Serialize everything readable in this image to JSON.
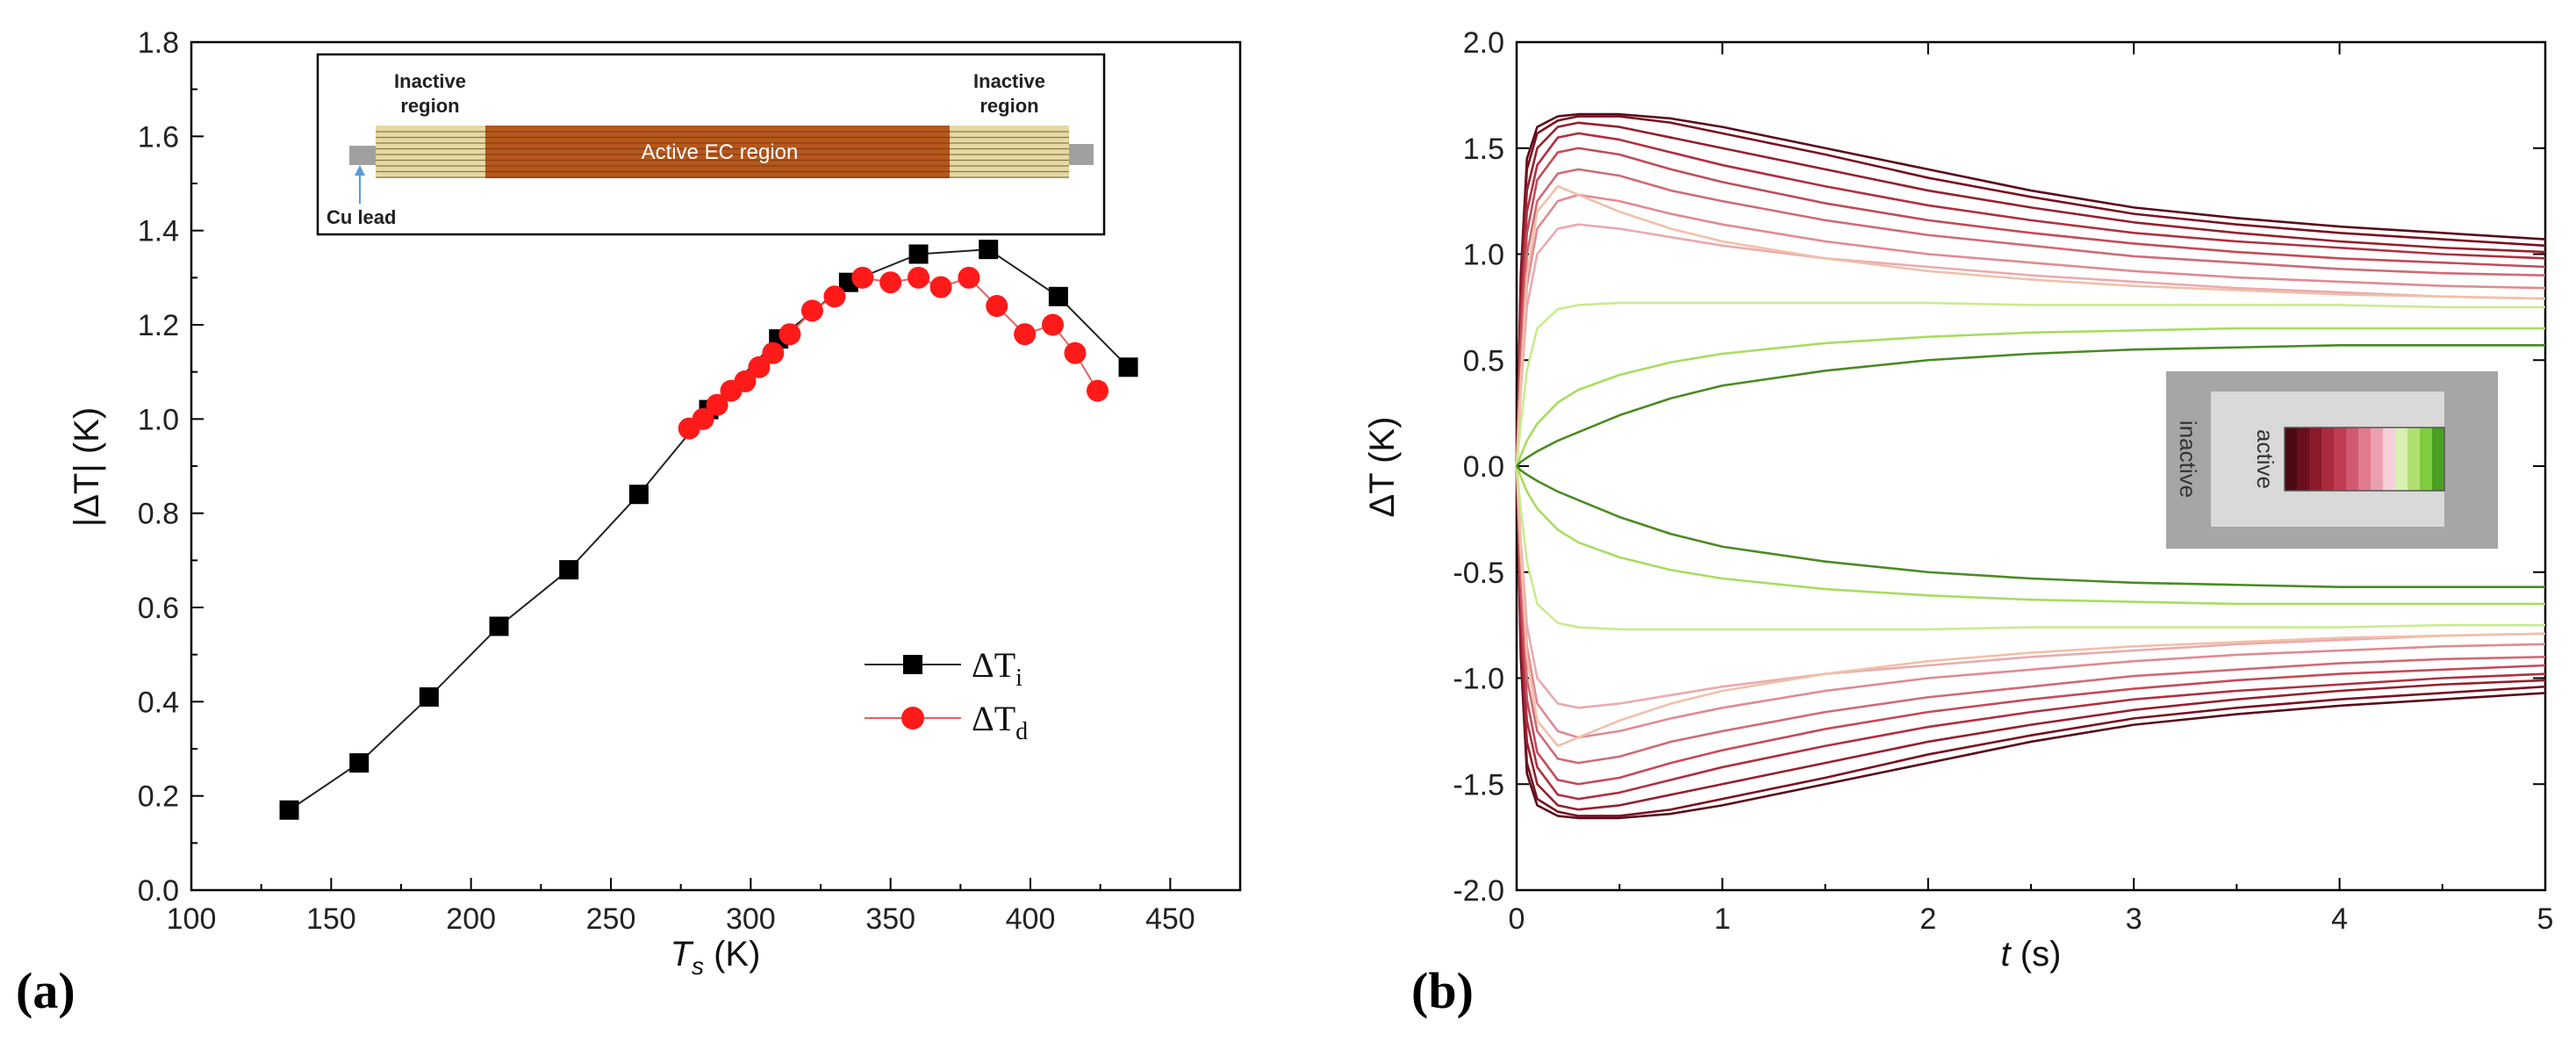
{
  "panels": {
    "a_label": "(a)",
    "b_label": "(b)"
  },
  "chart_data": [
    {
      "type": "scatter",
      "id": "a",
      "title": "",
      "xlabel_main": "T",
      "xlabel_sub": "s",
      "xlabel_unit": " (K)",
      "ylabel": "|ΔT| (K)",
      "xlim": [
        100,
        475
      ],
      "ylim": [
        0.0,
        1.8
      ],
      "xticks": [
        100,
        150,
        200,
        250,
        300,
        350,
        400,
        450
      ],
      "yticks": [
        0.0,
        0.2,
        0.4,
        0.6,
        0.8,
        1.0,
        1.2,
        1.4,
        1.6,
        1.8
      ],
      "series": [
        {
          "name": "ΔT_i",
          "legend_main": "ΔT",
          "legend_sub": "i",
          "marker": "square",
          "color": "#000000",
          "line_color": "#222222",
          "x": [
            135,
            160,
            185,
            210,
            235,
            260,
            285,
            310,
            335,
            360,
            385,
            410,
            435
          ],
          "y": [
            0.17,
            0.27,
            0.41,
            0.56,
            0.68,
            0.84,
            1.02,
            1.17,
            1.29,
            1.35,
            1.36,
            1.26,
            1.11
          ]
        },
        {
          "name": "ΔT_d",
          "legend_main": "ΔT",
          "legend_sub": "d",
          "marker": "circle",
          "color": "#ff1a1a",
          "line_color": "#e86060",
          "x": [
            278,
            283,
            288,
            293,
            298,
            303,
            308,
            314,
            322,
            330,
            340,
            350,
            360,
            368,
            378,
            388,
            398,
            408,
            416,
            424
          ],
          "y": [
            0.98,
            1.0,
            1.03,
            1.06,
            1.08,
            1.11,
            1.14,
            1.18,
            1.23,
            1.26,
            1.3,
            1.29,
            1.3,
            1.28,
            1.3,
            1.24,
            1.18,
            1.2,
            1.14,
            1.06
          ]
        }
      ],
      "legend_position": "center-right",
      "inset": {
        "left_label_1": "Inactive",
        "left_label_2": "region",
        "right_label_1": "Inactive",
        "right_label_2": "region",
        "center_label": "Active EC region",
        "lead_label": "Cu lead"
      }
    },
    {
      "type": "line",
      "id": "b",
      "title": "",
      "xlabel_main": "t",
      "xlabel_unit": " (s)",
      "ylabel": "ΔT (K)",
      "xlim": [
        0,
        5
      ],
      "ylim": [
        -2.0,
        2.0
      ],
      "xticks": [
        0,
        1,
        2,
        3,
        4,
        5
      ],
      "yticks": [
        2.0,
        1.5,
        1.0,
        0.5,
        0.0,
        -0.5,
        -1.0,
        -1.5,
        -2.0
      ],
      "time_points": [
        0.0,
        0.02,
        0.05,
        0.1,
        0.2,
        0.3,
        0.5,
        0.75,
        1.0,
        1.5,
        2.0,
        2.5,
        3.0,
        3.5,
        4.0,
        4.5,
        5.0
      ],
      "series": [
        {
          "name": "trace 1",
          "color": "#5a0a1a",
          "values": [
            0.0,
            0.9,
            1.45,
            1.6,
            1.65,
            1.66,
            1.66,
            1.64,
            1.6,
            1.5,
            1.4,
            1.3,
            1.22,
            1.17,
            1.13,
            1.1,
            1.07
          ]
        },
        {
          "name": "trace 2",
          "color": "#7a1020",
          "values": [
            0.0,
            0.85,
            1.4,
            1.57,
            1.63,
            1.65,
            1.65,
            1.62,
            1.57,
            1.47,
            1.36,
            1.27,
            1.19,
            1.14,
            1.1,
            1.07,
            1.04
          ]
        },
        {
          "name": "trace 3",
          "color": "#95202e",
          "values": [
            0.0,
            0.8,
            1.3,
            1.5,
            1.6,
            1.62,
            1.6,
            1.55,
            1.5,
            1.4,
            1.3,
            1.22,
            1.15,
            1.1,
            1.06,
            1.03,
            1.01
          ]
        },
        {
          "name": "trace 4",
          "color": "#b03040",
          "values": [
            0.0,
            0.7,
            1.2,
            1.42,
            1.55,
            1.57,
            1.54,
            1.48,
            1.42,
            1.32,
            1.23,
            1.16,
            1.1,
            1.06,
            1.03,
            1.0,
            0.98
          ]
        },
        {
          "name": "trace 5",
          "color": "#c44a58",
          "values": [
            0.0,
            0.6,
            1.1,
            1.35,
            1.48,
            1.5,
            1.47,
            1.4,
            1.34,
            1.24,
            1.16,
            1.1,
            1.05,
            1.01,
            0.98,
            0.96,
            0.94
          ]
        },
        {
          "name": "trace 6",
          "color": "#d06a76",
          "values": [
            0.0,
            0.5,
            1.0,
            1.25,
            1.38,
            1.4,
            1.37,
            1.3,
            1.25,
            1.16,
            1.09,
            1.04,
            0.99,
            0.96,
            0.93,
            0.91,
            0.9
          ]
        },
        {
          "name": "trace 7",
          "color": "#e08a92",
          "values": [
            0.0,
            0.4,
            0.85,
            1.12,
            1.25,
            1.28,
            1.25,
            1.19,
            1.14,
            1.06,
            1.0,
            0.96,
            0.92,
            0.89,
            0.87,
            0.85,
            0.84
          ]
        },
        {
          "name": "trace 8",
          "color": "#eaaab0",
          "values": [
            0.0,
            0.35,
            0.75,
            1.0,
            1.12,
            1.14,
            1.12,
            1.08,
            1.04,
            0.98,
            0.94,
            0.9,
            0.87,
            0.84,
            0.82,
            0.8,
            0.79
          ]
        },
        {
          "name": "trace 9",
          "color": "#f0c0a8",
          "values": [
            0.0,
            0.4,
            0.9,
            1.2,
            1.32,
            1.28,
            1.2,
            1.12,
            1.06,
            0.98,
            0.92,
            0.88,
            0.85,
            0.83,
            0.81,
            0.8,
            0.79
          ]
        },
        {
          "name": "trace 10",
          "color": "#c8ec8c",
          "values": [
            0.0,
            0.2,
            0.45,
            0.65,
            0.74,
            0.76,
            0.77,
            0.77,
            0.77,
            0.77,
            0.77,
            0.76,
            0.76,
            0.76,
            0.76,
            0.75,
            0.75
          ]
        },
        {
          "name": "trace 11",
          "color": "#a8dc60",
          "values": [
            0.0,
            0.05,
            0.12,
            0.2,
            0.3,
            0.36,
            0.43,
            0.49,
            0.53,
            0.58,
            0.61,
            0.63,
            0.64,
            0.65,
            0.65,
            0.65,
            0.65
          ]
        },
        {
          "name": "trace 12",
          "color": "#4a8a22",
          "values": [
            0.0,
            0.02,
            0.04,
            0.07,
            0.12,
            0.16,
            0.24,
            0.32,
            0.38,
            0.45,
            0.5,
            0.53,
            0.55,
            0.56,
            0.57,
            0.57,
            0.57
          ]
        }
      ],
      "mirrored_negative": true,
      "inset": {
        "outer_label": "inactive",
        "inner_label": "active",
        "swatches": [
          "#4a0a14",
          "#6a0e1e",
          "#8a1a2a",
          "#a82a3c",
          "#c03c52",
          "#d05a70",
          "#e07a8c",
          "#eaa0b0",
          "#f4d0d8",
          "#d8f0b0",
          "#b0e070",
          "#80cc40",
          "#4aa020"
        ]
      }
    }
  ]
}
